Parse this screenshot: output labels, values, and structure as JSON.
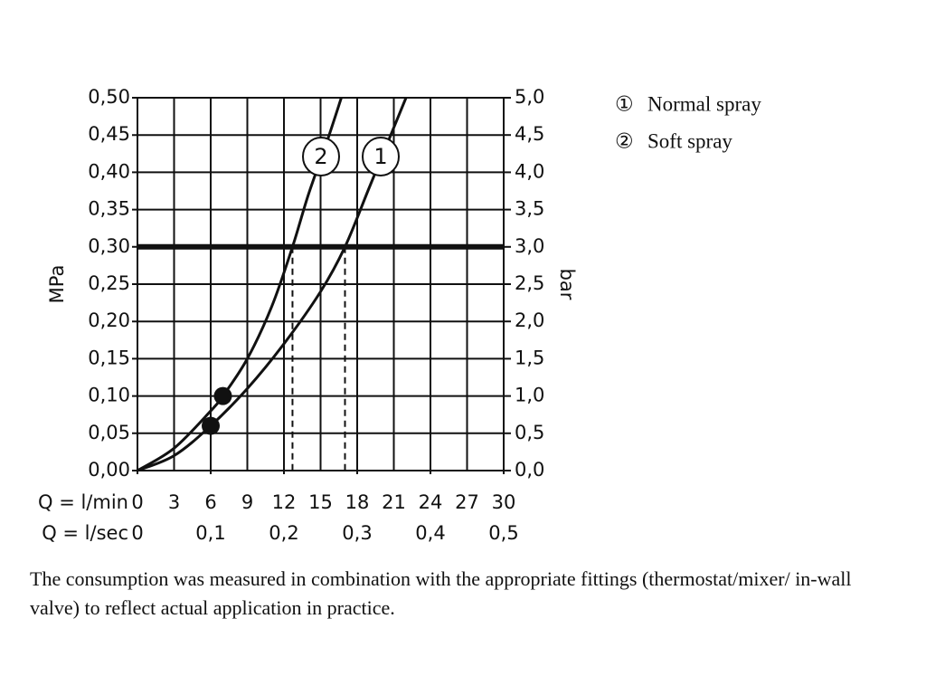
{
  "chart_data": {
    "type": "line",
    "xlabel": "Q = l/min",
    "x2label": "Q = l/sec",
    "ylabel": "MPa",
    "y2label": "bar",
    "xlim": [
      0,
      30
    ],
    "xticks": [
      0,
      3,
      6,
      9,
      12,
      15,
      18,
      21,
      24,
      27,
      30
    ],
    "x2lim": [
      0,
      0.5
    ],
    "x2ticks": [
      0,
      {
        "value": 0.1,
        "label": "0,1"
      },
      {
        "value": 0.2,
        "label": "0,2"
      },
      {
        "value": 0.3,
        "label": "0,3"
      },
      {
        "value": 0.4,
        "label": "0,4"
      },
      {
        "value": 0.5,
        "label": "0,5"
      }
    ],
    "ylim": [
      0,
      0.5
    ],
    "yticks": [
      {
        "value": 0,
        "label": "0,00"
      },
      {
        "value": 0.05,
        "label": "0,05"
      },
      {
        "value": 0.1,
        "label": "0,10"
      },
      {
        "value": 0.15,
        "label": "0,15"
      },
      {
        "value": 0.2,
        "label": "0,20"
      },
      {
        "value": 0.25,
        "label": "0,25"
      },
      {
        "value": 0.3,
        "label": "0,30"
      },
      {
        "value": 0.35,
        "label": "0,35"
      },
      {
        "value": 0.4,
        "label": "0,40"
      },
      {
        "value": 0.45,
        "label": "0,45"
      },
      {
        "value": 0.5,
        "label": "0,50"
      }
    ],
    "y2lim": [
      0,
      5
    ],
    "y2ticks": [
      {
        "value": 0,
        "label": "0,0"
      },
      {
        "value": 0.5,
        "label": "0,5"
      },
      {
        "value": 1,
        "label": "1,0"
      },
      {
        "value": 1.5,
        "label": "1,5"
      },
      {
        "value": 2,
        "label": "2,0"
      },
      {
        "value": 2.5,
        "label": "2,5"
      },
      {
        "value": 3,
        "label": "3,0"
      },
      {
        "value": 3.5,
        "label": "3,5"
      },
      {
        "value": 4,
        "label": "4,0"
      },
      {
        "value": 4.5,
        "label": "4,5"
      },
      {
        "value": 5,
        "label": "5,0"
      }
    ],
    "grid": true,
    "color": "#111111",
    "reference_y": 0.3,
    "drop_x": [
      12.7,
      17
    ],
    "series": [
      {
        "name": "Normal spray",
        "symbol": "①",
        "label": "1",
        "x": [
          0,
          3,
          6,
          9,
          12,
          15,
          17,
          19,
          21,
          22
        ],
        "values": [
          0,
          0.02,
          0.06,
          0.11,
          0.17,
          0.24,
          0.3,
          0.38,
          0.46,
          0.5
        ]
      },
      {
        "name": "Soft spray",
        "symbol": "②",
        "label": "2",
        "x": [
          0,
          3,
          6,
          7,
          9,
          11,
          12.7,
          14,
          15.5,
          16.7
        ],
        "values": [
          0,
          0.03,
          0.08,
          0.1,
          0.15,
          0.22,
          0.3,
          0.37,
          0.44,
          0.5
        ]
      }
    ],
    "points": {
      "x": [
        6,
        7
      ],
      "values": [
        0.06,
        0.1
      ]
    },
    "caption": "The consumption was measured in combination with the appropriate fittings (thermostat/mixer/ in-wall valve) to reflect actual application in practice."
  }
}
